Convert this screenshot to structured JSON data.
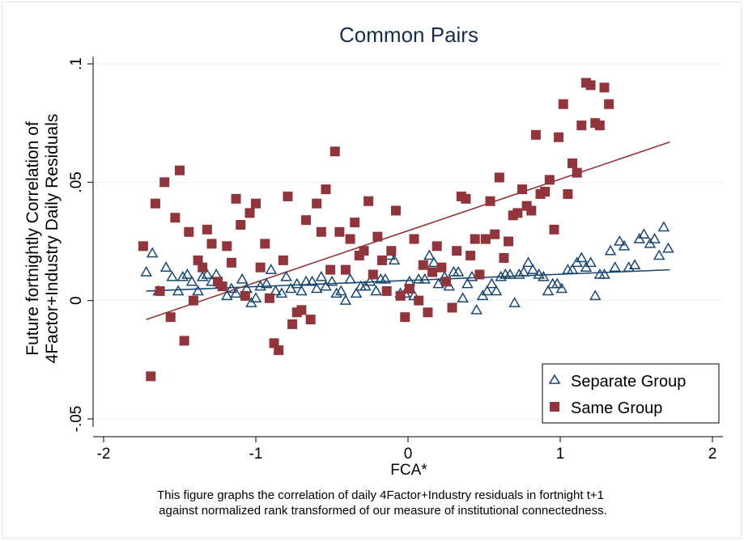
{
  "chart_data": {
    "type": "scatter",
    "title": "Common Pairs",
    "xlabel": "FCA*",
    "ylabel_lines": [
      "Future fortnightly Correlation of",
      "4Factor+Industry Daily Residuals"
    ],
    "xlim": [
      -2,
      2
    ],
    "ylim": [
      -0.05,
      0.1
    ],
    "x_ticks": [
      -2,
      -1,
      0,
      1,
      2
    ],
    "x_tick_labels": [
      "-2",
      "-1",
      "0",
      "1",
      "2"
    ],
    "y_ticks": [
      -0.05,
      0,
      0.05,
      0.1
    ],
    "y_tick_labels": [
      "-.05",
      "0",
      ".05",
      ".1"
    ],
    "grid": "horizontal",
    "legend_position": "bottom-right",
    "caption_lines": [
      "This figure graphs the correlation of daily 4Factor+Industry residuals in fortnight t+1",
      "against normalized rank transformed of our measure of institutional connectedness."
    ],
    "series": [
      {
        "name": "Separate Group",
        "marker": "triangle-hollow",
        "color": "#1a476f",
        "points": [
          [
            -1.72,
            0.012
          ],
          [
            -1.68,
            0.02
          ],
          [
            -1.64,
            0.004
          ],
          [
            -1.59,
            0.014
          ],
          [
            -1.55,
            0.01
          ],
          [
            -1.51,
            0.004
          ],
          [
            -1.48,
            0.01
          ],
          [
            -1.45,
            0.011
          ],
          [
            -1.42,
            0.008
          ],
          [
            -1.38,
            0.004
          ],
          [
            -1.35,
            0.01
          ],
          [
            -1.32,
            0.011
          ],
          [
            -1.29,
            0.008
          ],
          [
            -1.26,
            0.011
          ],
          [
            -1.23,
            0.007
          ],
          [
            -1.19,
            0.002
          ],
          [
            -1.16,
            0.005
          ],
          [
            -1.13,
            0.003
          ],
          [
            -1.09,
            0.009
          ],
          [
            -1.06,
            0.005
          ],
          [
            -1.03,
            -0.001
          ],
          [
            -1.0,
            0.001
          ],
          [
            -0.97,
            0.006
          ],
          [
            -0.93,
            0.007
          ],
          [
            -0.9,
            0.013
          ],
          [
            -0.87,
            0.004
          ],
          [
            -0.83,
            0.003
          ],
          [
            -0.8,
            0.01
          ],
          [
            -0.77,
            0.005
          ],
          [
            -0.73,
            0.007
          ],
          [
            -0.7,
            0.004
          ],
          [
            -0.67,
            0.008
          ],
          [
            -0.63,
            0.008
          ],
          [
            -0.6,
            0.005
          ],
          [
            -0.57,
            0.01
          ],
          [
            -0.54,
            0.006
          ],
          [
            -0.5,
            0.008
          ],
          [
            -0.47,
            0.003
          ],
          [
            -0.44,
            0.004
          ],
          [
            -0.41,
            0.0
          ],
          [
            -0.38,
            0.009
          ],
          [
            -0.34,
            0.003
          ],
          [
            -0.31,
            0.006
          ],
          [
            -0.28,
            0.006
          ],
          [
            -0.25,
            0.008
          ],
          [
            -0.21,
            0.004
          ],
          [
            -0.18,
            0.009
          ],
          [
            -0.15,
            0.009
          ],
          [
            -0.12,
            0.019
          ],
          [
            -0.09,
            0.017
          ],
          [
            -0.05,
            0.003
          ],
          [
            -0.02,
            0.003
          ],
          [
            0.01,
            0.008
          ],
          [
            0.04,
            0.002
          ],
          [
            0.07,
            0.009
          ],
          [
            0.11,
            0.009
          ],
          [
            0.14,
            0.019
          ],
          [
            0.17,
            0.016
          ],
          [
            0.2,
            0.007
          ],
          [
            0.24,
            0.01
          ],
          [
            0.27,
            0.006
          ],
          [
            0.3,
            0.012
          ],
          [
            0.33,
            0.012
          ],
          [
            0.36,
            0.001
          ],
          [
            0.39,
            0.007
          ],
          [
            0.42,
            0.01
          ],
          [
            0.45,
            -0.004
          ],
          [
            0.49,
            0.002
          ],
          [
            0.52,
            0.004
          ],
          [
            0.55,
            0.007
          ],
          [
            0.58,
            0.004
          ],
          [
            0.61,
            0.01
          ],
          [
            0.64,
            0.011
          ],
          [
            0.67,
            0.011
          ],
          [
            0.7,
            -0.001
          ],
          [
            0.73,
            0.011
          ],
          [
            0.76,
            0.012
          ],
          [
            0.79,
            0.016
          ],
          [
            0.82,
            0.013
          ],
          [
            0.86,
            0.011
          ],
          [
            0.89,
            0.01
          ],
          [
            0.92,
            0.004
          ],
          [
            0.95,
            0.007
          ],
          [
            0.98,
            0.007
          ],
          [
            1.01,
            0.005
          ],
          [
            1.05,
            0.013
          ],
          [
            1.08,
            0.013
          ],
          [
            1.11,
            0.016
          ],
          [
            1.14,
            0.018
          ],
          [
            1.17,
            0.014
          ],
          [
            1.2,
            0.016
          ],
          [
            1.23,
            0.002
          ],
          [
            1.26,
            0.011
          ],
          [
            1.29,
            0.011
          ],
          [
            1.33,
            0.021
          ],
          [
            1.36,
            0.014
          ],
          [
            1.39,
            0.025
          ],
          [
            1.42,
            0.023
          ],
          [
            1.45,
            0.014
          ],
          [
            1.49,
            0.015
          ],
          [
            1.52,
            0.026
          ],
          [
            1.55,
            0.028
          ],
          [
            1.59,
            0.024
          ],
          [
            1.62,
            0.026
          ],
          [
            1.65,
            0.019
          ],
          [
            1.68,
            0.031
          ],
          [
            1.71,
            0.022
          ]
        ],
        "fit": {
          "x": [
            -1.72,
            1.72
          ],
          "y": [
            0.004,
            0.013
          ]
        }
      },
      {
        "name": "Same Group",
        "marker": "square-filled",
        "color": "#90353b",
        "points": [
          [
            -1.74,
            0.023
          ],
          [
            -1.69,
            -0.032
          ],
          [
            -1.66,
            0.041
          ],
          [
            -1.63,
            0.004
          ],
          [
            -1.6,
            0.05
          ],
          [
            -1.56,
            -0.007
          ],
          [
            -1.53,
            0.035
          ],
          [
            -1.5,
            0.055
          ],
          [
            -1.47,
            -0.017
          ],
          [
            -1.44,
            0.029
          ],
          [
            -1.41,
            0.0
          ],
          [
            -1.38,
            0.017
          ],
          [
            -1.35,
            0.014
          ],
          [
            -1.32,
            0.03
          ],
          [
            -1.29,
            0.024
          ],
          [
            -1.25,
            0.008
          ],
          [
            -1.22,
            0.006
          ],
          [
            -1.19,
            0.023
          ],
          [
            -1.16,
            0.016
          ],
          [
            -1.13,
            0.043
          ],
          [
            -1.1,
            0.032
          ],
          [
            -1.07,
            0.002
          ],
          [
            -1.04,
            0.037
          ],
          [
            -1.0,
            0.041
          ],
          [
            -0.97,
            0.014
          ],
          [
            -0.94,
            0.024
          ],
          [
            -0.91,
            0.001
          ],
          [
            -0.88,
            -0.018
          ],
          [
            -0.85,
            -0.021
          ],
          [
            -0.82,
            0.017
          ],
          [
            -0.79,
            0.044
          ],
          [
            -0.76,
            -0.01
          ],
          [
            -0.73,
            -0.005
          ],
          [
            -0.7,
            -0.004
          ],
          [
            -0.67,
            0.034
          ],
          [
            -0.64,
            -0.008
          ],
          [
            -0.6,
            0.041
          ],
          [
            -0.57,
            0.029
          ],
          [
            -0.54,
            0.047
          ],
          [
            -0.51,
            0.013
          ],
          [
            -0.48,
            0.063
          ],
          [
            -0.45,
            0.029
          ],
          [
            -0.41,
            0.013
          ],
          [
            -0.38,
            0.026
          ],
          [
            -0.35,
            0.033
          ],
          [
            -0.32,
            0.019
          ],
          [
            -0.29,
            0.021
          ],
          [
            -0.26,
            0.042
          ],
          [
            -0.23,
            0.011
          ],
          [
            -0.2,
            0.027
          ],
          [
            -0.17,
            0.017
          ],
          [
            -0.14,
            0.004
          ],
          [
            -0.11,
            0.021
          ],
          [
            -0.08,
            0.038
          ],
          [
            -0.05,
            0.002
          ],
          [
            -0.02,
            -0.007
          ],
          [
            0.01,
            0.005
          ],
          [
            0.04,
            0.026
          ],
          [
            0.07,
            0.0
          ],
          [
            0.1,
            0.015
          ],
          [
            0.13,
            -0.005
          ],
          [
            0.16,
            0.012
          ],
          [
            0.19,
            0.023
          ],
          [
            0.22,
            0.014
          ],
          [
            0.25,
            0.008
          ],
          [
            0.29,
            -0.003
          ],
          [
            0.32,
            0.021
          ],
          [
            0.35,
            0.044
          ],
          [
            0.38,
            0.043
          ],
          [
            0.41,
            0.019
          ],
          [
            0.44,
            0.026
          ],
          [
            0.47,
            0.011
          ],
          [
            0.51,
            0.026
          ],
          [
            0.54,
            0.042
          ],
          [
            0.57,
            0.028
          ],
          [
            0.6,
            0.052
          ],
          [
            0.63,
            0.018
          ],
          [
            0.66,
            0.025
          ],
          [
            0.69,
            0.036
          ],
          [
            0.72,
            0.037
          ],
          [
            0.75,
            0.047
          ],
          [
            0.78,
            0.04
          ],
          [
            0.81,
            0.038
          ],
          [
            0.84,
            0.07
          ],
          [
            0.87,
            0.045
          ],
          [
            0.9,
            0.046
          ],
          [
            0.93,
            0.051
          ],
          [
            0.96,
            0.03
          ],
          [
            0.99,
            0.069
          ],
          [
            1.02,
            0.083
          ],
          [
            1.05,
            0.045
          ],
          [
            1.08,
            0.058
          ],
          [
            1.11,
            0.054
          ],
          [
            1.14,
            0.074
          ],
          [
            1.17,
            0.092
          ],
          [
            1.2,
            0.091
          ],
          [
            1.23,
            0.075
          ],
          [
            1.26,
            0.074
          ],
          [
            1.29,
            0.09
          ],
          [
            1.32,
            0.083
          ]
        ],
        "fit": {
          "x": [
            -1.72,
            1.72
          ],
          "y": [
            -0.008,
            0.067
          ]
        }
      }
    ]
  }
}
